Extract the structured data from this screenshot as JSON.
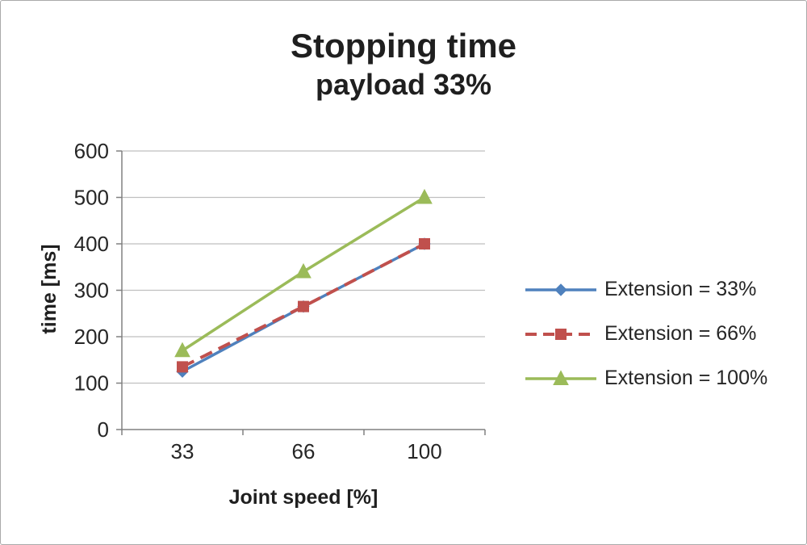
{
  "chart_data": {
    "type": "line",
    "title": "Stopping time",
    "subtitle": "payload 33%",
    "xlabel": "Joint speed [%]",
    "ylabel": "time [ms]",
    "categories": [
      "33",
      "66",
      "100"
    ],
    "series": [
      {
        "name": "Extension = 33%",
        "values": [
          125,
          265,
          400
        ],
        "color": "#4f81bd",
        "marker": "diamond",
        "dash": "solid"
      },
      {
        "name": "Extension = 66%",
        "values": [
          135,
          265,
          400
        ],
        "color": "#c0504d",
        "marker": "square",
        "dash": "dashed"
      },
      {
        "name": "Extension = 100%",
        "values": [
          170,
          340,
          500
        ],
        "color": "#9bbb59",
        "marker": "triangle",
        "dash": "solid"
      }
    ],
    "ylim": [
      0,
      600
    ],
    "ytick_step": 100,
    "grid": true,
    "legend_position": "right",
    "axis_color": "#808080",
    "gridline_color": "#bfbfbf",
    "text_color": "#262626"
  }
}
